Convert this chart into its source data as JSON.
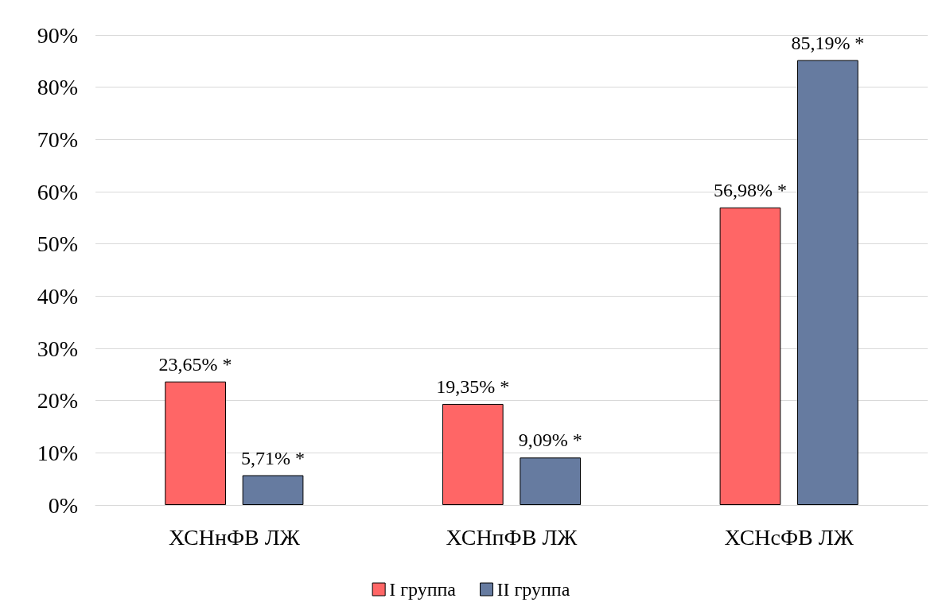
{
  "chart_data": {
    "type": "bar",
    "categories": [
      "ХСНнФВ ЛЖ",
      "ХСНпФВ ЛЖ",
      "ХСНсФВ ЛЖ"
    ],
    "series": [
      {
        "name": "I группа",
        "color": "#ff6666",
        "values": [
          23.65,
          19.35,
          56.98
        ],
        "value_labels": [
          "23,65% *",
          "19,35% *",
          "56,98% *"
        ]
      },
      {
        "name": "II группа",
        "color": "#667ba0",
        "values": [
          5.71,
          9.09,
          85.19
        ],
        "value_labels": [
          "5,71% *",
          "9,09% *",
          "85,19% *"
        ]
      }
    ],
    "ylim": [
      0,
      90
    ],
    "yticks": [
      {
        "value": 0,
        "label": "0%"
      },
      {
        "value": 10,
        "label": "10%"
      },
      {
        "value": 20,
        "label": "20%"
      },
      {
        "value": 30,
        "label": "30%"
      },
      {
        "value": 40,
        "label": "40%"
      },
      {
        "value": 50,
        "label": "50%"
      },
      {
        "value": 60,
        "label": "60%"
      },
      {
        "value": 70,
        "label": "70%"
      },
      {
        "value": 80,
        "label": "80%"
      },
      {
        "value": 90,
        "label": "90%"
      }
    ],
    "grid": "y",
    "legend": "bottom"
  }
}
